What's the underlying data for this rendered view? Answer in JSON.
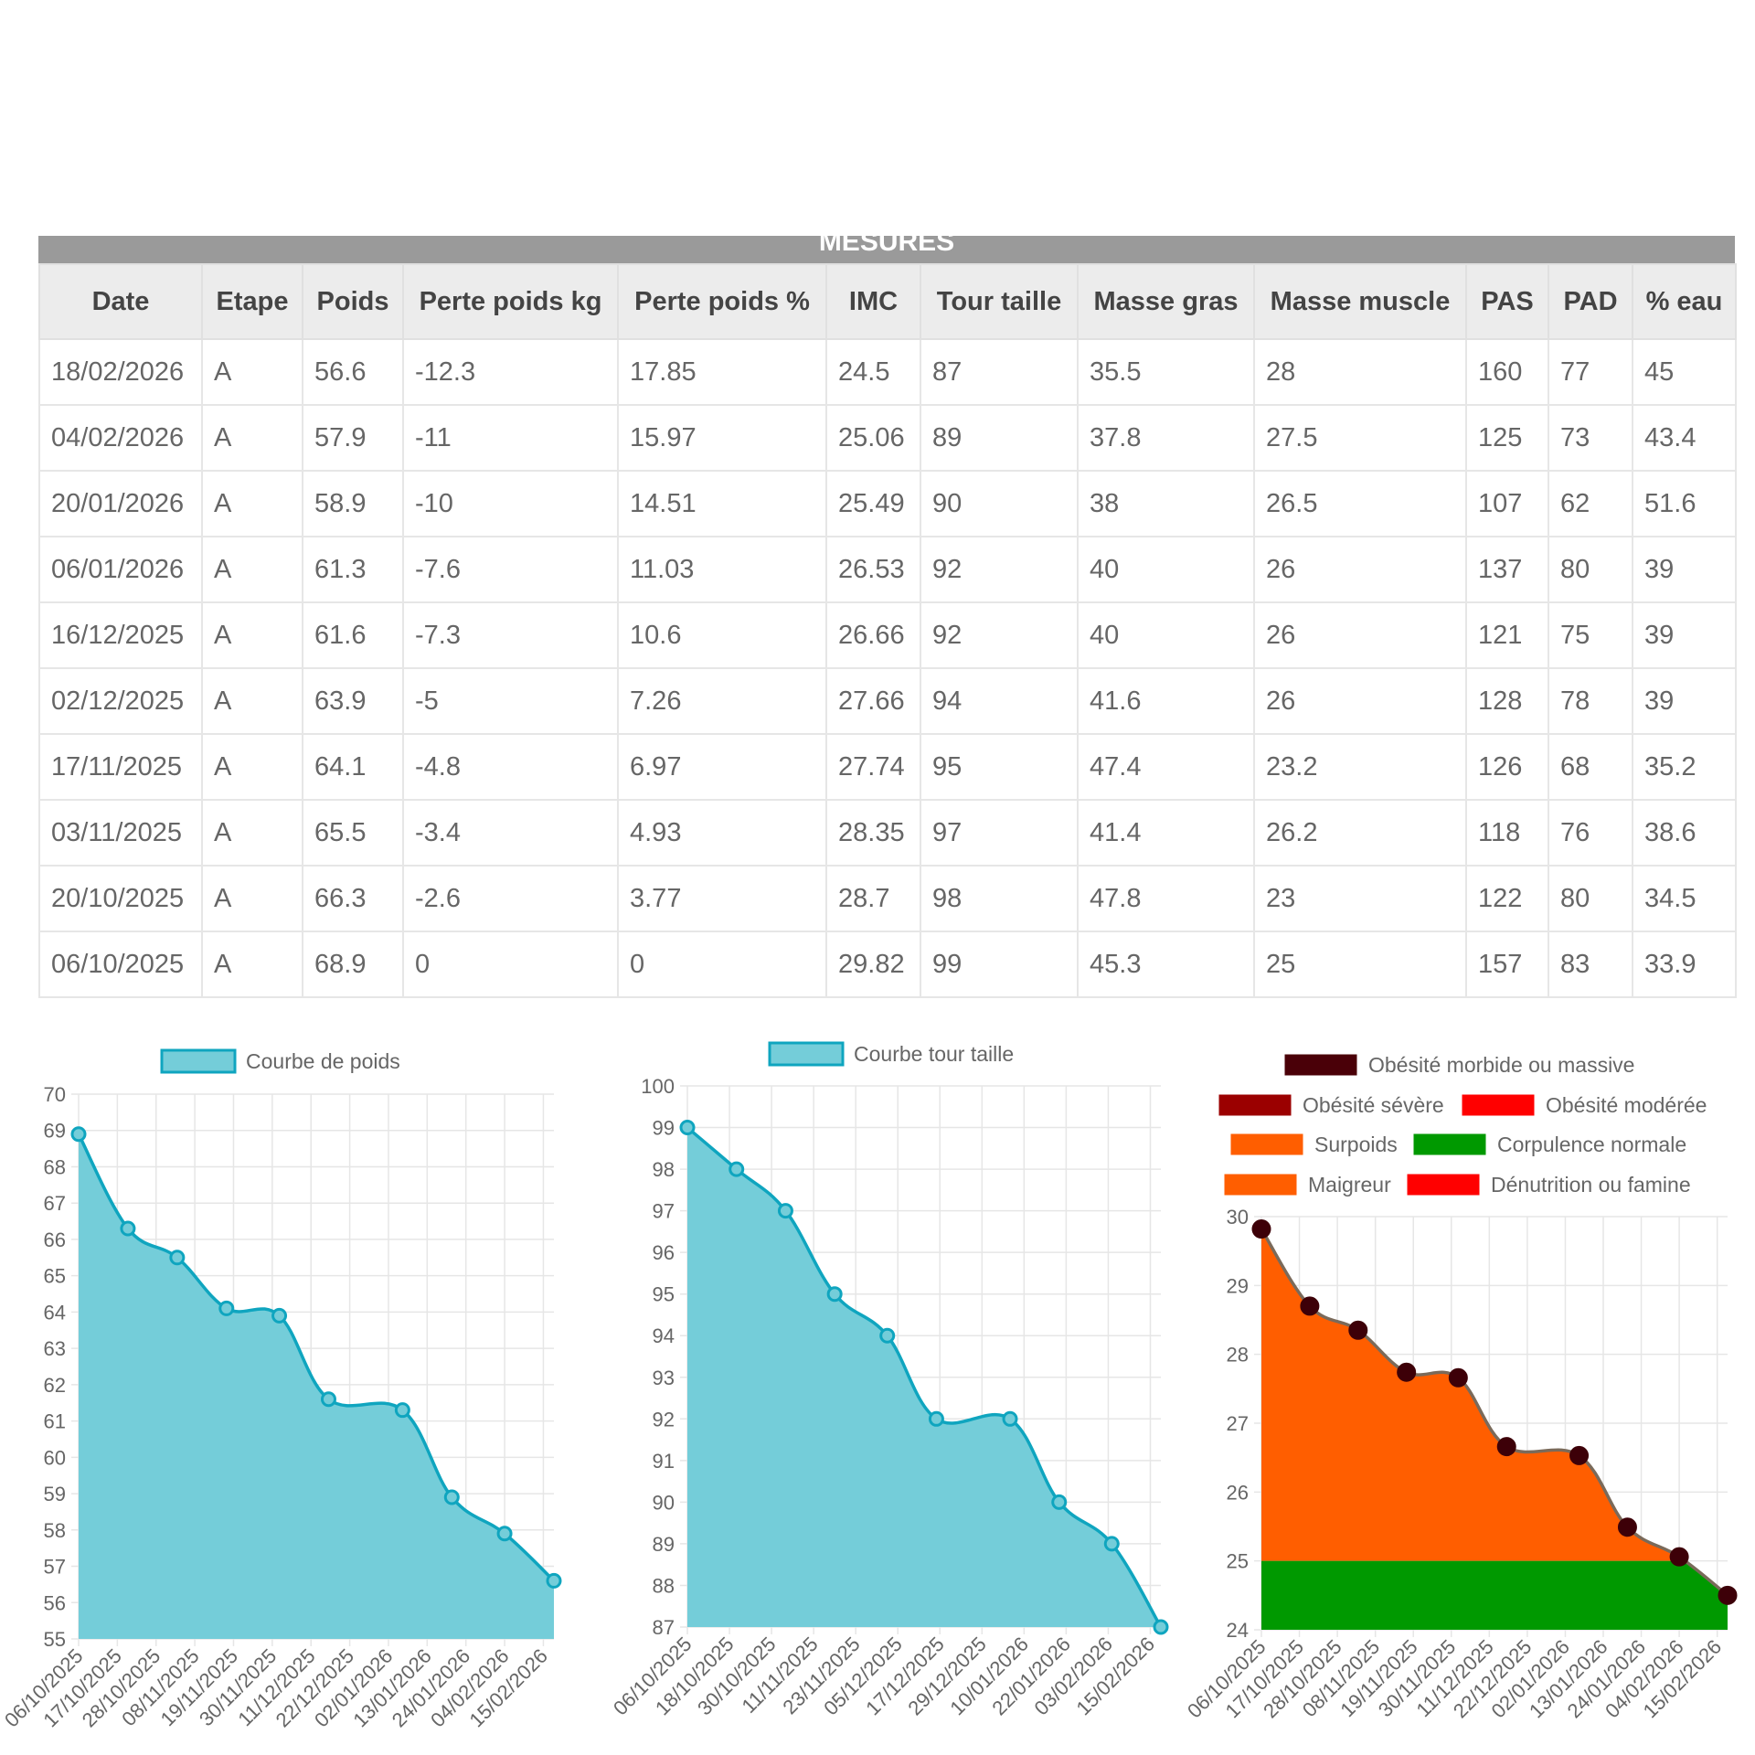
{
  "table": {
    "caption": "MESURES",
    "columns": [
      "Date",
      "Etape",
      "Poids",
      "Perte poids kg",
      "Perte poids %",
      "IMC",
      "Tour taille",
      "Masse gras",
      "Masse muscle",
      "PAS",
      "PAD",
      "% eau"
    ],
    "rows": [
      [
        "18/02/2026",
        "A",
        "56.6",
        "-12.3",
        "17.85",
        "24.5",
        "87",
        "35.5",
        "28",
        "160",
        "77",
        "45"
      ],
      [
        "04/02/2026",
        "A",
        "57.9",
        "-11",
        "15.97",
        "25.06",
        "89",
        "37.8",
        "27.5",
        "125",
        "73",
        "43.4"
      ],
      [
        "20/01/2026",
        "A",
        "58.9",
        "-10",
        "14.51",
        "25.49",
        "90",
        "38",
        "26.5",
        "107",
        "62",
        "51.6"
      ],
      [
        "06/01/2026",
        "A",
        "61.3",
        "-7.6",
        "11.03",
        "26.53",
        "92",
        "40",
        "26",
        "137",
        "80",
        "39"
      ],
      [
        "16/12/2025",
        "A",
        "61.6",
        "-7.3",
        "10.6",
        "26.66",
        "92",
        "40",
        "26",
        "121",
        "75",
        "39"
      ],
      [
        "02/12/2025",
        "A",
        "63.9",
        "-5",
        "7.26",
        "27.66",
        "94",
        "41.6",
        "26",
        "128",
        "78",
        "39"
      ],
      [
        "17/11/2025",
        "A",
        "64.1",
        "-4.8",
        "6.97",
        "27.74",
        "95",
        "47.4",
        "23.2",
        "126",
        "68",
        "35.2"
      ],
      [
        "03/11/2025",
        "A",
        "65.5",
        "-3.4",
        "4.93",
        "28.35",
        "97",
        "41.4",
        "26.2",
        "118",
        "76",
        "38.6"
      ],
      [
        "20/10/2025",
        "A",
        "66.3",
        "-2.6",
        "3.77",
        "28.7",
        "98",
        "47.8",
        "23",
        "122",
        "80",
        "34.5"
      ],
      [
        "06/10/2025",
        "A",
        "68.9",
        "0",
        "0",
        "29.82",
        "99",
        "45.3",
        "25",
        "157",
        "83",
        "33.9"
      ]
    ]
  },
  "colors": {
    "series_fill": "#74cdd9",
    "series_line": "#0fa5bf",
    "grid": "#e6e6e6",
    "axis_text": "#666666",
    "bmi_line": "#7a6a5a",
    "bmi_point": "#3d0008",
    "bmi_surpoids": "#ff5e00",
    "bmi_normal": "#009900"
  },
  "chart_data": [
    {
      "type": "area",
      "legend": [
        "Courbe de poids"
      ],
      "legend_position": "top",
      "x_ticks": [
        "06/10/2025",
        "17/10/2025",
        "28/10/2025",
        "08/11/2025",
        "19/11/2025",
        "30/11/2025",
        "11/12/2025",
        "22/12/2025",
        "02/01/2026",
        "13/01/2026",
        "24/01/2026",
        "04/02/2026",
        "15/02/2026"
      ],
      "x": [
        "06/10/2025",
        "20/10/2025",
        "03/11/2025",
        "17/11/2025",
        "02/12/2025",
        "16/12/2025",
        "06/01/2026",
        "20/01/2026",
        "04/02/2026",
        "18/02/2026"
      ],
      "series": [
        {
          "name": "Courbe de poids",
          "values": [
            68.9,
            66.3,
            65.5,
            64.1,
            63.9,
            61.6,
            61.3,
            58.9,
            57.9,
            56.6
          ]
        }
      ],
      "ylim": [
        55,
        70
      ],
      "grid": true
    },
    {
      "type": "area",
      "legend": [
        "Courbe tour taille"
      ],
      "legend_position": "top",
      "x_ticks": [
        "06/10/2025",
        "18/10/2025",
        "30/10/2025",
        "11/11/2025",
        "23/11/2025",
        "05/12/2025",
        "17/12/2025",
        "29/12/2025",
        "10/01/2026",
        "22/01/2026",
        "03/02/2026",
        "15/02/2026"
      ],
      "x": [
        "06/10/2025",
        "20/10/2025",
        "03/11/2025",
        "17/11/2025",
        "02/12/2025",
        "16/12/2025",
        "06/01/2026",
        "20/01/2026",
        "04/02/2026",
        "18/02/2026"
      ],
      "series": [
        {
          "name": "Courbe tour taille",
          "values": [
            99,
            98,
            97,
            95,
            94,
            92,
            92,
            90,
            89,
            87
          ]
        }
      ],
      "ylim": [
        87,
        100
      ],
      "grid": true
    },
    {
      "type": "area",
      "legend": [
        "Obésité morbide ou massive",
        "Obésité sévère",
        "Obésité modérée",
        "Surpoids",
        "Corpulence normale",
        "Maigreur",
        "Dénutrition ou famine"
      ],
      "legend_colors": [
        "#4a0008",
        "#9b0000",
        "#ff0000",
        "#ff5e00",
        "#009900",
        "#ff5e00",
        "#ff0000"
      ],
      "legend_position": "top",
      "bands": [
        {
          "name": "Surpoids",
          "from": 25,
          "to": 30,
          "color": "#ff5e00"
        },
        {
          "name": "Corpulence normale",
          "from": 18.5,
          "to": 25,
          "color": "#009900"
        }
      ],
      "x_ticks": [
        "06/10/2025",
        "17/10/2025",
        "28/10/2025",
        "08/11/2025",
        "19/11/2025",
        "30/11/2025",
        "11/12/2025",
        "22/12/2025",
        "02/01/2026",
        "13/01/2026",
        "24/01/2026",
        "04/02/2026",
        "15/02/2026"
      ],
      "x": [
        "06/10/2025",
        "20/10/2025",
        "03/11/2025",
        "17/11/2025",
        "02/12/2025",
        "16/12/2025",
        "06/01/2026",
        "20/01/2026",
        "04/02/2026",
        "18/02/2026"
      ],
      "series": [
        {
          "name": "IMC",
          "values": [
            29.82,
            28.7,
            28.35,
            27.74,
            27.66,
            26.66,
            26.53,
            25.49,
            25.06,
            24.5
          ]
        }
      ],
      "ylim": [
        24,
        30
      ],
      "grid": true
    }
  ]
}
